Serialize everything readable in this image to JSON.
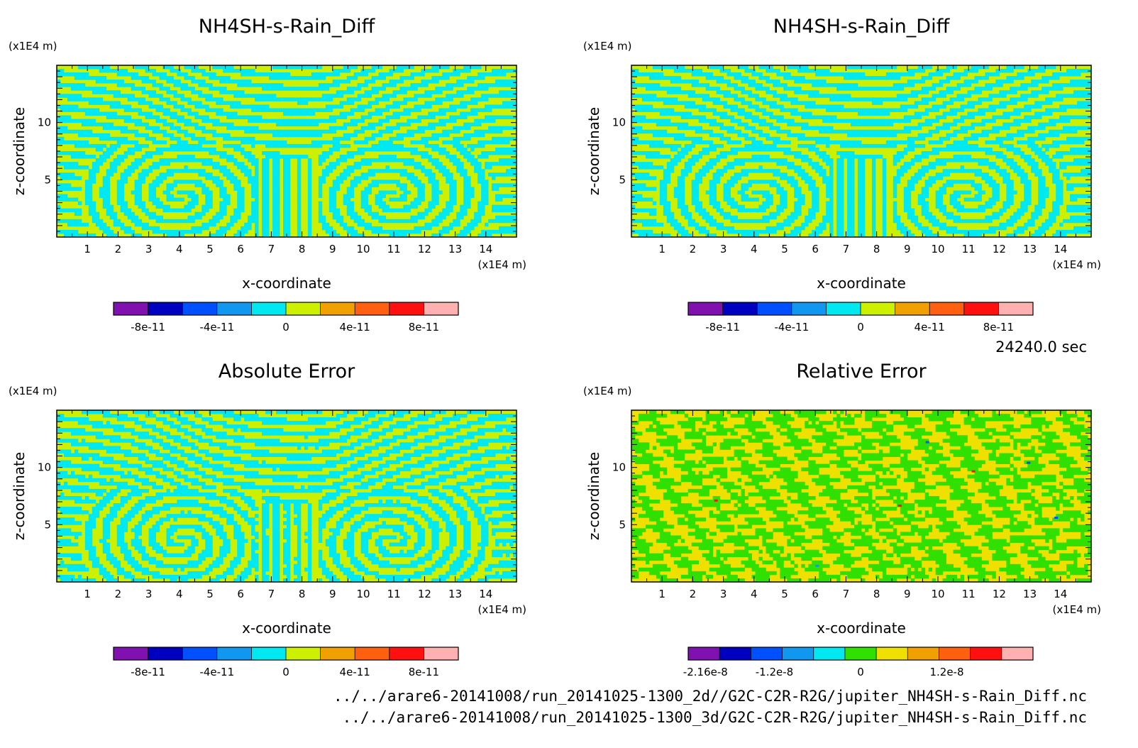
{
  "time_label": "24240.0 sec",
  "footer_lines": [
    "../../arare6-20141008/run_20141025-1300_2d//G2C-C2R-R2G/jupiter_NH4SH-s-Rain_Diff.nc",
    "../../arare6-20141008/run_20141025-1300_3d/G2C-C2R-R2G/jupiter_NH4SH-s-Rain_Diff.nc"
  ],
  "chart_data": [
    {
      "type": "heatmap",
      "title": "NH4SH-s-Rain_Diff",
      "xlabel": "x-coordinate",
      "ylabel": "z-coordinate",
      "x_unit": "(x1E4 m)",
      "y_unit": "(x1E4 m)",
      "xlim": [
        0,
        15
      ],
      "ylim": [
        0,
        15
      ],
      "x_ticks": [
        1,
        2,
        3,
        4,
        5,
        6,
        7,
        8,
        9,
        10,
        11,
        12,
        13,
        14
      ],
      "y_ticks": [
        5,
        10
      ],
      "pattern": "swirl",
      "field_colors": [
        "#ccf000",
        "#00e8f0"
      ],
      "colorbar": {
        "colors": [
          "#8010b0",
          "#0000c0",
          "#0050ff",
          "#1098f0",
          "#00e8f0",
          "#ccf000",
          "#f0a000",
          "#ff6010",
          "#ff1010",
          "#ffb0b0"
        ],
        "tick_values": [
          -8e-11,
          -4e-11,
          0,
          4e-11,
          8e-11
        ],
        "tick_labels": [
          "-8e-11",
          "-4e-11",
          "0",
          "4e-11",
          "8e-11"
        ],
        "range": [
          -1e-10,
          1e-10
        ]
      }
    },
    {
      "type": "heatmap",
      "title": "NH4SH-s-Rain_Diff",
      "xlabel": "x-coordinate",
      "ylabel": "z-coordinate",
      "x_unit": "(x1E4 m)",
      "y_unit": "(x1E4 m)",
      "xlim": [
        0,
        15
      ],
      "ylim": [
        0,
        15
      ],
      "x_ticks": [
        1,
        2,
        3,
        4,
        5,
        6,
        7,
        8,
        9,
        10,
        11,
        12,
        13,
        14
      ],
      "y_ticks": [
        5,
        10
      ],
      "pattern": "swirl",
      "field_colors": [
        "#ccf000",
        "#00e8f0"
      ],
      "colorbar": {
        "colors": [
          "#8010b0",
          "#0000c0",
          "#0050ff",
          "#1098f0",
          "#00e8f0",
          "#ccf000",
          "#f0a000",
          "#ff6010",
          "#ff1010",
          "#ffb0b0"
        ],
        "tick_values": [
          -8e-11,
          -4e-11,
          0,
          4e-11,
          8e-11
        ],
        "tick_labels": [
          "-8e-11",
          "-4e-11",
          "0",
          "4e-11",
          "8e-11"
        ],
        "range": [
          -1e-10,
          1e-10
        ]
      }
    },
    {
      "type": "heatmap",
      "title": "Absolute Error",
      "xlabel": "x-coordinate",
      "ylabel": "z-coordinate",
      "x_unit": "(x1E4 m)",
      "y_unit": "(x1E4 m)",
      "xlim": [
        0,
        15
      ],
      "ylim": [
        0,
        15
      ],
      "x_ticks": [
        1,
        2,
        3,
        4,
        5,
        6,
        7,
        8,
        9,
        10,
        11,
        12,
        13,
        14
      ],
      "y_ticks": [
        5,
        10
      ],
      "pattern": "swirl-noisy",
      "field_colors": [
        "#ccf000",
        "#00e8f0"
      ],
      "colorbar": {
        "colors": [
          "#8010b0",
          "#0000c0",
          "#0050ff",
          "#1098f0",
          "#00e8f0",
          "#ccf000",
          "#f0a000",
          "#ff6010",
          "#ff1010",
          "#ffb0b0"
        ],
        "tick_values": [
          -8e-11,
          -4e-11,
          0,
          4e-11,
          8e-11
        ],
        "tick_labels": [
          "-8e-11",
          "-4e-11",
          "0",
          "4e-11",
          "8e-11"
        ],
        "range": [
          -1e-10,
          1e-10
        ]
      }
    },
    {
      "type": "heatmap",
      "title": "Relative Error",
      "xlabel": "x-coordinate",
      "ylabel": "z-coordinate",
      "x_unit": "(x1E4 m)",
      "y_unit": "(x1E4 m)",
      "xlim": [
        0,
        15
      ],
      "ylim": [
        0,
        15
      ],
      "x_ticks": [
        1,
        2,
        3,
        4,
        5,
        6,
        7,
        8,
        9,
        10,
        11,
        12,
        13,
        14
      ],
      "y_ticks": [
        5,
        10
      ],
      "pattern": "noise",
      "field_colors": [
        "#f0e000",
        "#30e000"
      ],
      "colorbar": {
        "colors": [
          "#8010b0",
          "#0000c0",
          "#0050ff",
          "#1098f0",
          "#00e8f0",
          "#30e000",
          "#f0e000",
          "#f0a000",
          "#ff6010",
          "#ff1010",
          "#ffb0b0"
        ],
        "tick_values": [
          -2.16e-08,
          -1.2e-08,
          0,
          1.2e-08
        ],
        "tick_labels": [
          "-2.16e-8",
          "-1.2e-8",
          "0",
          "1.2e-8"
        ],
        "range": [
          -2.4e-08,
          2.4e-08
        ]
      }
    }
  ]
}
